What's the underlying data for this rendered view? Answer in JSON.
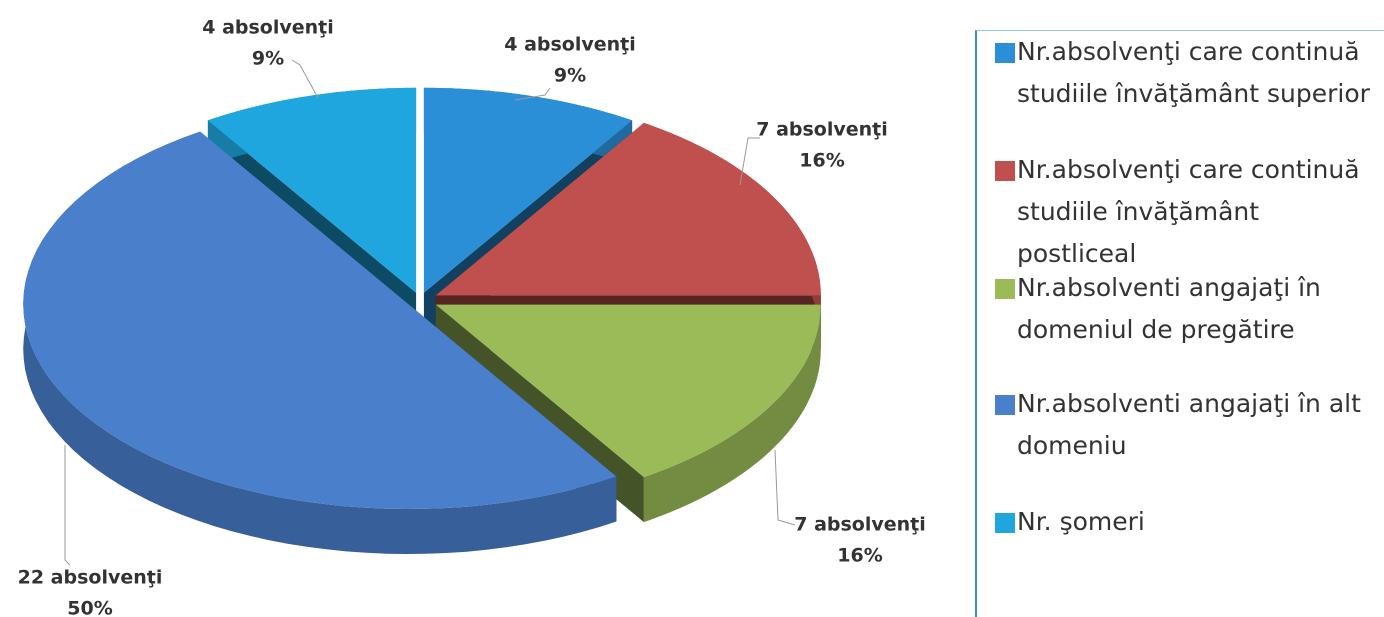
{
  "chart_data": {
    "type": "pie",
    "categories": [
      "Nr.absolvenţi care continuă studiile învăţământ superior",
      "Nr.absolvenţi care continuă studiile învăţământ postliceal",
      "Nr.absolventi angajaţi în domeniul de pregătire",
      "Nr.absolventi angajaţi în alt domeniu",
      "Nr. şomeri"
    ],
    "values": [
      4,
      7,
      7,
      22,
      4
    ],
    "value_labels": [
      "4 absolvenţi",
      "7 absolvenţi",
      "7 absolvenţi",
      "22 absolvenţi",
      "4 absolvenţi"
    ],
    "percent_labels": [
      "9%",
      "16%",
      "16%",
      "50%",
      "9%"
    ],
    "colors": [
      "#2a8fd6",
      "#c0504d",
      "#9bbb59",
      "#4a7fcc",
      "#1fa6de"
    ],
    "legend": "right"
  }
}
